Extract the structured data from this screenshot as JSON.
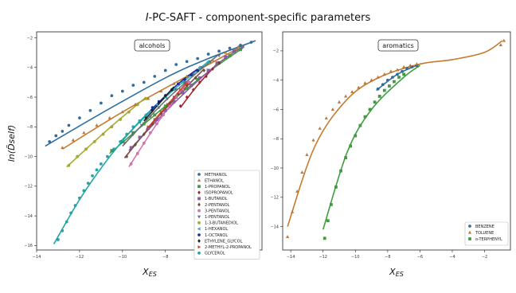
{
  "figure": {
    "title_italic": "I",
    "title_rest": "-PC-SAFT - component-specific parameters"
  },
  "chart_data": [
    {
      "type": "scatter",
      "panel_label": "alcohols",
      "xlabel_main": "X",
      "xlabel_sub": "ES",
      "ylabel": "ln(D̃self)",
      "xlim": [
        -14,
        -3.5
      ],
      "ylim": [
        -16.3,
        -1.6
      ],
      "xticks": [
        -14,
        -12,
        -10,
        -8,
        -6,
        -4
      ],
      "yticks": [
        -16,
        -14,
        -12,
        -10,
        -8,
        -6,
        -4,
        -2
      ],
      "grid": false,
      "legend_position": "bottom-right",
      "series": [
        {
          "name": "METHANOL",
          "color": "#2e6fa3",
          "marker": "circle",
          "x": [
            -13.4,
            -13.1,
            -12.8,
            -12.5,
            -12.0,
            -11.5,
            -11.0,
            -10.5,
            -10.0,
            -9.5,
            -9.0,
            -8.5,
            -8.0,
            -7.5,
            -7.0,
            -6.5,
            -6.0,
            -5.5,
            -5.0,
            -4.5,
            -4.0
          ],
          "y": [
            -9.0,
            -8.6,
            -8.3,
            -7.9,
            -7.4,
            -6.9,
            -6.4,
            -5.9,
            -5.6,
            -5.2,
            -5.0,
            -4.6,
            -4.2,
            -3.8,
            -3.6,
            -3.4,
            -3.1,
            -2.9,
            -2.7,
            -2.5,
            -2.3
          ],
          "fit_x": [
            -13.6,
            -11.0,
            -8.0,
            -6.0,
            -3.8
          ],
          "fit_y": [
            -9.3,
            -7.1,
            -4.7,
            -3.4,
            -2.2
          ]
        },
        {
          "name": "ETHANOL",
          "color": "#c77a2f",
          "marker": "triangle",
          "x": [
            -12.8,
            -12.3,
            -11.8,
            -11.2,
            -10.6,
            -10.0,
            -9.4,
            -8.8,
            -8.2,
            -7.6,
            -7.0,
            -6.4,
            -5.8,
            -5.2,
            -4.6
          ],
          "y": [
            -9.4,
            -8.9,
            -8.4,
            -7.9,
            -7.4,
            -7.0,
            -6.5,
            -6.1,
            -5.6,
            -5.1,
            -4.6,
            -4.0,
            -3.5,
            -3.0,
            -2.6
          ],
          "fit_x": [
            -12.8,
            -10.0,
            -7.0,
            -4.6
          ],
          "fit_y": [
            -9.5,
            -7.0,
            -4.6,
            -2.7
          ]
        },
        {
          "name": "1-PROPANOL",
          "color": "#3f9e3f",
          "marker": "square",
          "x": [
            -10.5,
            -10.0,
            -9.5,
            -9.0,
            -8.5,
            -8.0,
            -7.5,
            -7.0,
            -6.5,
            -6.0,
            -5.5,
            -5.0,
            -4.5
          ],
          "y": [
            -9.6,
            -9.0,
            -8.4,
            -7.8,
            -7.2,
            -6.6,
            -6.0,
            -5.4,
            -4.8,
            -4.2,
            -3.7,
            -3.2,
            -2.8
          ],
          "fit_x": [
            -10.6,
            -8.0,
            -6.0,
            -4.4
          ],
          "fit_y": [
            -9.8,
            -6.6,
            -4.3,
            -2.7
          ]
        },
        {
          "name": "ISOPROPANOL",
          "color": "#a8222b",
          "marker": "diamond",
          "x": [
            -7.3,
            -7.0,
            -6.7,
            -6.4,
            -6.1,
            -5.8,
            -5.5
          ],
          "y": [
            -6.6,
            -6.0,
            -5.5,
            -5.0,
            -4.6,
            -4.1,
            -3.7
          ],
          "fit_x": [
            -7.3,
            -6.5,
            -5.5
          ],
          "fit_y": [
            -6.7,
            -5.2,
            -3.6
          ]
        },
        {
          "name": "1-BUTANOL",
          "color": "#8c5aa8",
          "marker": "square",
          "x": [
            -9.6,
            -9.2,
            -8.8,
            -8.4,
            -8.0,
            -7.6,
            -7.2,
            -6.8,
            -6.4,
            -6.0,
            -5.6,
            -5.2,
            -4.8,
            -4.4
          ],
          "y": [
            -9.4,
            -8.7,
            -8.1,
            -7.5,
            -6.9,
            -6.3,
            -5.7,
            -5.2,
            -4.7,
            -4.2,
            -3.7,
            -3.3,
            -2.9,
            -2.6
          ],
          "fit_x": [
            -9.7,
            -7.6,
            -5.6,
            -4.4
          ],
          "fit_y": [
            -9.6,
            -6.4,
            -3.8,
            -2.6
          ]
        },
        {
          "name": "2-PENTANOL",
          "color": "#7a4a3a",
          "marker": "diamond",
          "x": [
            -9.8,
            -9.4,
            -9.0,
            -8.6,
            -8.2,
            -7.8,
            -7.4,
            -7.0,
            -6.6,
            -6.2
          ],
          "y": [
            -10.0,
            -9.2,
            -8.5,
            -7.8,
            -7.1,
            -6.4,
            -5.8,
            -5.2,
            -4.7,
            -4.2
          ],
          "fit_x": [
            -9.9,
            -8.2,
            -6.2
          ],
          "fit_y": [
            -10.1,
            -7.1,
            -4.1
          ]
        },
        {
          "name": "3-PENTANOL",
          "color": "#d873b3",
          "marker": "circle",
          "x": [
            -9.6,
            -9.3,
            -9.0,
            -8.7,
            -8.4,
            -8.1,
            -7.8,
            -7.5,
            -7.2,
            -6.9
          ],
          "y": [
            -10.5,
            -9.8,
            -9.1,
            -8.4,
            -7.8,
            -7.2,
            -6.6,
            -6.0,
            -5.5,
            -5.0
          ],
          "fit_x": [
            -9.7,
            -8.4,
            -6.9
          ],
          "fit_y": [
            -10.7,
            -7.8,
            -4.9
          ]
        },
        {
          "name": "1-PENTANOL",
          "color": "#6d7278",
          "marker": "triangle-down",
          "x": [
            -9.9,
            -9.5,
            -9.1,
            -8.7,
            -8.3,
            -7.9,
            -7.5,
            -7.1,
            -6.7,
            -6.3,
            -5.9,
            -5.5
          ],
          "y": [
            -9.1,
            -8.5,
            -7.9,
            -7.3,
            -6.7,
            -6.1,
            -5.5,
            -5.0,
            -4.5,
            -4.0,
            -3.6,
            -3.2
          ],
          "fit_x": [
            -10.0,
            -7.9,
            -5.5
          ],
          "fit_y": [
            -9.3,
            -6.1,
            -3.1
          ]
        },
        {
          "name": "1-3-BUTANEDIOL",
          "color": "#a5ad2a",
          "marker": "circle",
          "x": [
            -12.5,
            -12.1,
            -11.7,
            -11.3,
            -10.9,
            -10.5,
            -10.1,
            -9.7,
            -9.3,
            -8.9
          ],
          "y": [
            -10.6,
            -10.0,
            -9.5,
            -9.0,
            -8.5,
            -8.0,
            -7.5,
            -7.0,
            -6.5,
            -6.1
          ],
          "fit_x": [
            -12.6,
            -10.7,
            -8.9
          ],
          "fit_y": [
            -10.7,
            -8.2,
            -6.0
          ]
        },
        {
          "name": "1-HEXANOL",
          "color": "#2ab0c2",
          "marker": "triangle-left",
          "x": [
            -10.0,
            -9.6,
            -9.2,
            -8.8,
            -8.4,
            -8.0,
            -7.6,
            -7.2,
            -6.8,
            -6.4,
            -6.0
          ],
          "y": [
            -8.9,
            -8.3,
            -7.7,
            -7.1,
            -6.5,
            -6.0,
            -5.5,
            -5.0,
            -4.5,
            -4.0,
            -3.6
          ],
          "fit_x": [
            -10.1,
            -8.0,
            -6.0
          ],
          "fit_y": [
            -9.0,
            -6.0,
            -3.6
          ]
        },
        {
          "name": "1-OCTANOL",
          "color": "#1c2f9e",
          "marker": "circle",
          "x": [
            -8.6,
            -8.3,
            -8.0,
            -7.7,
            -7.4,
            -7.1,
            -6.8,
            -6.5
          ],
          "y": [
            -6.7,
            -6.3,
            -5.9,
            -5.5,
            -5.1,
            -4.8,
            -4.5,
            -4.2
          ],
          "fit_x": [
            -8.7,
            -7.4,
            -6.5
          ],
          "fit_y": [
            -6.9,
            -5.1,
            -4.1
          ]
        },
        {
          "name": "ETHYLENE_GLYCOL",
          "color": "#222222",
          "marker": "diamond",
          "x": [
            -8.9,
            -8.6,
            -8.3,
            -8.0,
            -7.7
          ],
          "y": [
            -7.4,
            -6.9,
            -6.4,
            -5.9,
            -5.5
          ],
          "fit_x": [
            -9.0,
            -7.6
          ],
          "fit_y": [
            -7.6,
            -5.3
          ]
        },
        {
          "name": "2-METHYL-2-PROPANOL",
          "color": "#e0401f",
          "marker": "triangle-right",
          "x": [
            -8.8,
            -8.5,
            -8.2,
            -7.9,
            -7.6,
            -7.3,
            -7.0
          ],
          "y": [
            -8.0,
            -7.5,
            -7.0,
            -6.5,
            -6.0,
            -5.5,
            -5.1
          ],
          "fit_x": [
            -8.9,
            -7.0
          ],
          "fit_y": [
            -8.2,
            -5.0
          ]
        },
        {
          "name": "GLYCEROL",
          "color": "#22a8a8",
          "marker": "circle",
          "x": [
            -13.0,
            -12.8,
            -12.6,
            -12.4,
            -12.2,
            -12.0,
            -11.8,
            -11.6,
            -11.4,
            -11.2,
            -11.0,
            -10.7,
            -10.4,
            -10.1,
            -9.8,
            -9.5,
            -9.2,
            -8.9
          ],
          "y": [
            -15.6,
            -15.0,
            -14.4,
            -13.8,
            -13.3,
            -12.8,
            -12.3,
            -11.8,
            -11.3,
            -10.9,
            -10.5,
            -10.0,
            -9.5,
            -9.0,
            -8.5,
            -8.0,
            -7.6,
            -7.2
          ],
          "fit_x": [
            -13.2,
            -12.0,
            -10.8,
            -9.5,
            -8.7
          ],
          "fit_y": [
            -15.9,
            -12.9,
            -10.4,
            -8.1,
            -6.9
          ]
        }
      ]
    },
    {
      "type": "scatter",
      "panel_label": "aromatics",
      "xlabel_main": "X",
      "xlabel_sub": "ES",
      "xlim": [
        -14.5,
        -0.4
      ],
      "ylim": [
        -15.6,
        -0.7
      ],
      "xticks": [
        -14,
        -12,
        -10,
        -8,
        -6,
        -4,
        -2
      ],
      "yticks": [
        -14,
        -12,
        -10,
        -8,
        -6,
        -4,
        -2
      ],
      "grid": false,
      "legend_position": "bottom-right",
      "series": [
        {
          "name": "BENZENE",
          "color": "#2e6fa3",
          "marker": "circle",
          "x": [
            -8.6,
            -8.3,
            -8.0,
            -7.7,
            -7.4,
            -7.1,
            -6.8,
            -6.5,
            -6.2
          ],
          "y": [
            -4.6,
            -4.3,
            -4.0,
            -3.8,
            -3.6,
            -3.4,
            -3.2,
            -3.1,
            -3.0
          ],
          "fit_x": [
            -8.7,
            -7.4,
            -6.0
          ],
          "fit_y": [
            -4.7,
            -3.6,
            -2.9
          ]
        },
        {
          "name": "TOLUENE",
          "color": "#c77a2f",
          "marker": "triangle",
          "x": [
            -14.2,
            -13.9,
            -13.6,
            -13.3,
            -13.0,
            -12.6,
            -12.2,
            -11.8,
            -11.4,
            -11.0,
            -10.6,
            -10.2,
            -9.8,
            -9.4,
            -9.0,
            -8.6,
            -8.2,
            -7.8,
            -7.4,
            -7.0,
            -6.6,
            -6.2,
            -1.0,
            -0.8
          ],
          "y": [
            -14.7,
            -13.0,
            -11.6,
            -10.3,
            -9.1,
            -8.1,
            -7.3,
            -6.6,
            -6.0,
            -5.5,
            -5.1,
            -4.8,
            -4.5,
            -4.2,
            -4.0,
            -3.8,
            -3.6,
            -3.4,
            -3.3,
            -3.1,
            -3.0,
            -2.9,
            -1.6,
            -1.3
          ],
          "fit_x": [
            -14.2,
            -12.5,
            -10.5,
            -8.5,
            -6.0,
            -4.0,
            -2.0,
            -0.9
          ],
          "fit_y": [
            -14.0,
            -8.5,
            -5.3,
            -3.8,
            -2.9,
            -2.6,
            -2.1,
            -1.3
          ]
        },
        {
          "name": "o-TERPHENYL",
          "color": "#3f9e3f",
          "marker": "square",
          "x": [
            -11.9,
            -11.7,
            -11.5,
            -11.2,
            -10.9,
            -10.6,
            -10.3,
            -10.0,
            -9.7,
            -9.4,
            -9.1,
            -8.8,
            -8.5,
            -8.2,
            -7.9,
            -7.6,
            -7.3,
            -7.0
          ],
          "y": [
            -14.8,
            -13.6,
            -12.5,
            -11.3,
            -10.2,
            -9.3,
            -8.5,
            -7.8,
            -7.1,
            -6.5,
            -6.0,
            -5.5,
            -5.1,
            -4.7,
            -4.4,
            -4.1,
            -3.8,
            -3.6
          ],
          "fit_x": [
            -12.0,
            -10.5,
            -9.0,
            -7.0,
            -6.0
          ],
          "fit_y": [
            -14.2,
            -8.9,
            -6.0,
            -3.8,
            -3.0
          ]
        }
      ]
    }
  ]
}
